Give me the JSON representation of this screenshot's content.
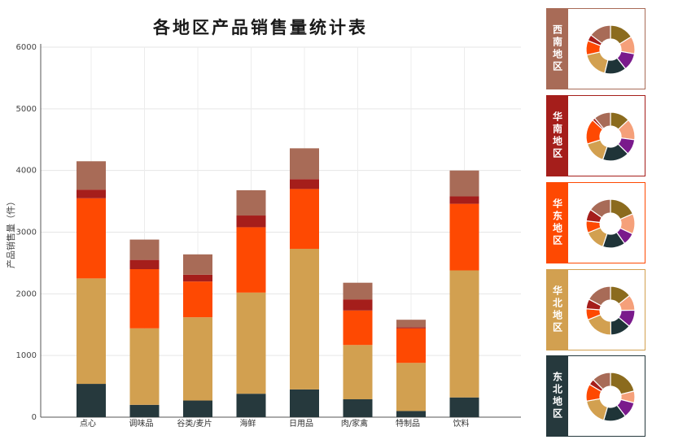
{
  "chart_data": [
    {
      "type": "bar",
      "stacked": true,
      "title": "各地区产品销售量统计表",
      "ylabel": "产品销售量（件）",
      "xlabel": "",
      "ylim": [
        0,
        6000
      ],
      "yticks": [
        0,
        1000,
        2000,
        3000,
        4000,
        5000,
        6000
      ],
      "grid": true,
      "categories": [
        "点心",
        "调味品",
        "谷类/麦片",
        "海鲜",
        "日用品",
        "肉/家禽",
        "特制品",
        "饮料"
      ],
      "series": [
        {
          "name": "东北地区",
          "color": "#26393d",
          "values": [
            540,
            200,
            270,
            380,
            450,
            290,
            100,
            320
          ]
        },
        {
          "name": "华北地区",
          "color": "#d2a050",
          "values": [
            1710,
            1240,
            1350,
            1640,
            2280,
            880,
            780,
            2060
          ]
        },
        {
          "name": "华东地区",
          "color": "#fe4902",
          "values": [
            1300,
            960,
            580,
            1060,
            970,
            560,
            560,
            1080
          ]
        },
        {
          "name": "华南地区",
          "color": "#a51e1b",
          "values": [
            140,
            150,
            110,
            190,
            160,
            180,
            20,
            120
          ]
        },
        {
          "name": "西南地区",
          "color": "#a86b57",
          "values": [
            460,
            330,
            330,
            410,
            500,
            270,
            120,
            420
          ]
        }
      ]
    },
    {
      "type": "pie",
      "panels": [
        {
          "label": "西南地区",
          "color": "#a86b57",
          "values": [
            460,
            330,
            330,
            410,
            500,
            270,
            120,
            420
          ]
        },
        {
          "label": "华南地区",
          "color": "#a51e1b",
          "values": [
            140,
            150,
            110,
            190,
            160,
            180,
            20,
            120
          ]
        },
        {
          "label": "华东地区",
          "color": "#fe4902",
          "values": [
            1300,
            960,
            580,
            1060,
            970,
            560,
            560,
            1080
          ]
        },
        {
          "label": "华北地区",
          "color": "#d2a050",
          "values": [
            1710,
            1240,
            1350,
            1640,
            2280,
            880,
            780,
            2060
          ]
        },
        {
          "label": "东北地区",
          "color": "#26393d",
          "values": [
            540,
            200,
            270,
            380,
            450,
            290,
            100,
            320
          ]
        }
      ],
      "slice_colors": [
        "#8b6b1e",
        "#f5a07a",
        "#7a1a8c",
        "#1f3438",
        "#d2a050",
        "#fe4902",
        "#a51e1b",
        "#a86b57"
      ]
    }
  ]
}
